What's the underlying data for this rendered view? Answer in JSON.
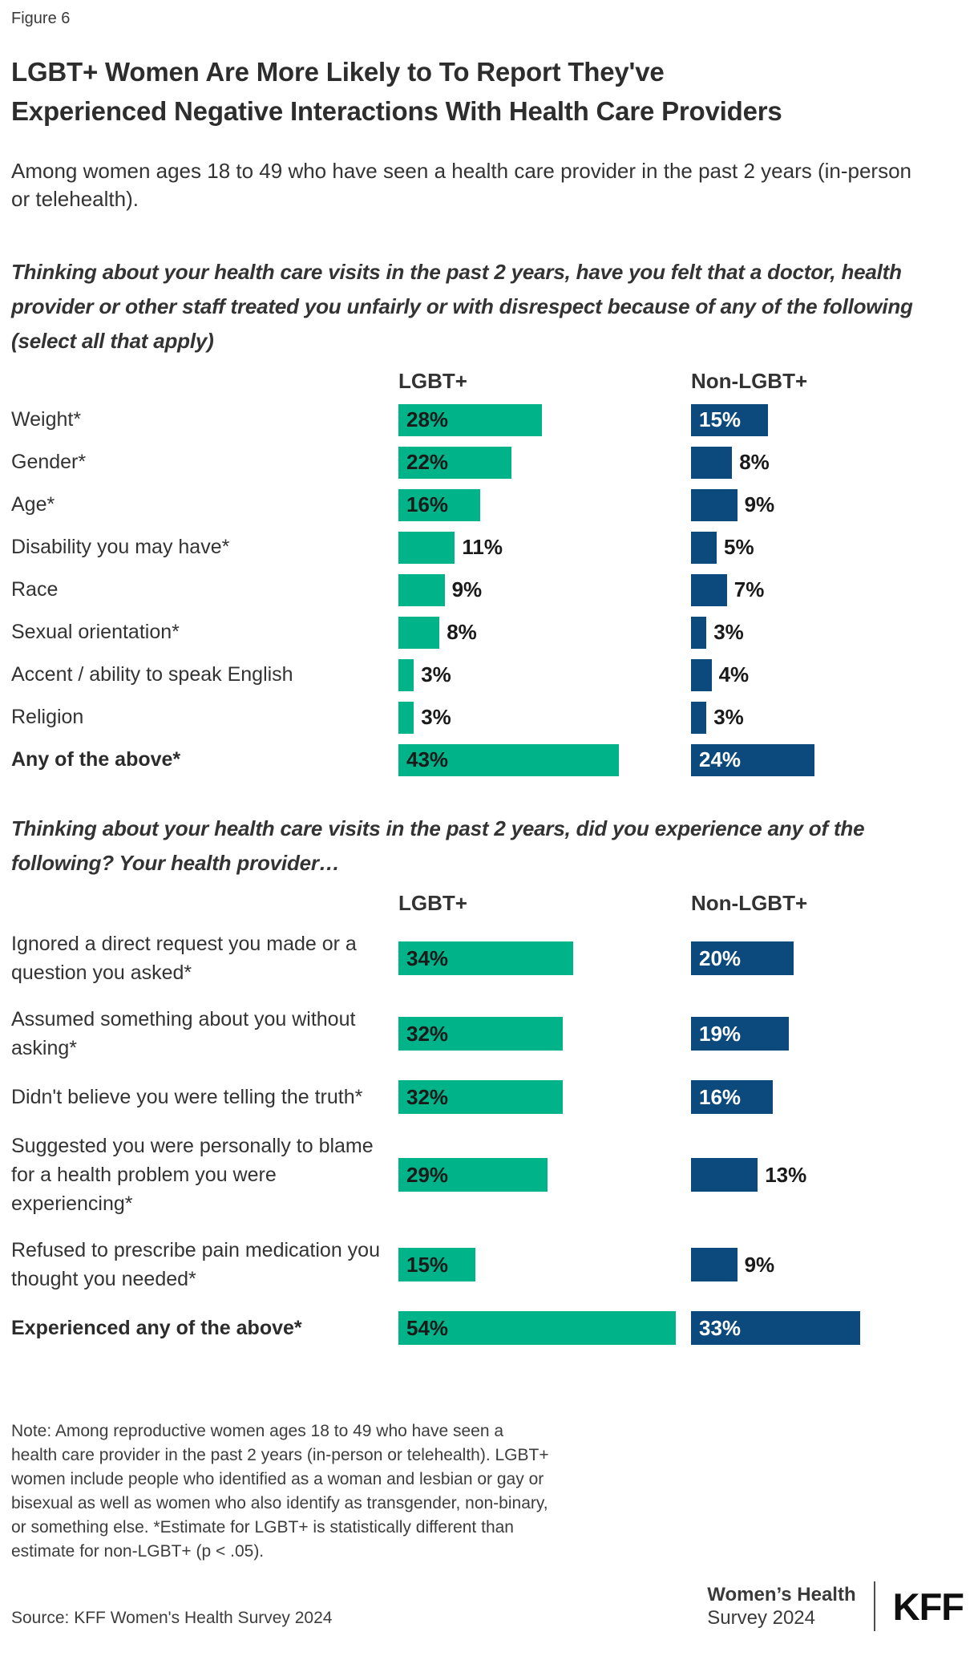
{
  "figure_label": "Figure 6",
  "title_lines": [
    "LGBT+ Women Are More Likely to To Report They've",
    "Experienced Negative Interactions With Health Care Providers"
  ],
  "subtitle": "Among women ages 18 to 49 who have seen a health care provider in the past 2 years (in-person or telehealth).",
  "colors": {
    "lgbt_green": "#00B389",
    "non_lgbt_navy": "#0C4A7E"
  },
  "chart_data": [
    {
      "type": "bar",
      "orientation": "horizontal",
      "question": "Thinking about your health care visits in the past 2 years, have you felt that a doctor, health provider or other staff treated you unfairly or with disrespect because of any of the following (select all that apply)",
      "unit": "%",
      "xlim": [
        0,
        57
      ],
      "grid": false,
      "legend_position": "column-headers",
      "categories": [
        "Weight*",
        "Gender*",
        "Age*",
        "Disability you may have*",
        "Race",
        "Sexual orientation*",
        "Accent / ability to speak English",
        "Religion",
        "Any of the above*"
      ],
      "summary_row_index": 8,
      "series": [
        {
          "name": "LGBT+",
          "color": "#00B389",
          "values": [
            28,
            22,
            16,
            11,
            9,
            8,
            3,
            3,
            43
          ],
          "label_inside": [
            true,
            true,
            true,
            false,
            false,
            false,
            false,
            false,
            true
          ]
        },
        {
          "name": "Non-LGBT+",
          "color": "#0C4A7E",
          "values": [
            15,
            8,
            9,
            5,
            7,
            3,
            4,
            3,
            24
          ],
          "label_inside": [
            true,
            false,
            false,
            false,
            false,
            false,
            false,
            false,
            true
          ]
        }
      ]
    },
    {
      "type": "bar",
      "orientation": "horizontal",
      "question": "Thinking about your health care visits in the past 2 years, did you experience any of the following? Your health provider…",
      "unit": "%",
      "xlim": [
        0,
        57
      ],
      "grid": false,
      "legend_position": "column-headers",
      "categories": [
        "Ignored a direct request you made or a question you asked*",
        "Assumed something about you without asking*",
        "Didn't believe you were telling the truth*",
        "Suggested you were personally to blame for a health problem you were experiencing*",
        "Refused to prescribe pain medication you thought you needed*",
        "Experienced any of the above*"
      ],
      "summary_row_index": 5,
      "series": [
        {
          "name": "LGBT+",
          "color": "#00B389",
          "values": [
            34,
            32,
            32,
            29,
            15,
            54
          ],
          "label_inside": [
            true,
            true,
            true,
            true,
            true,
            true
          ]
        },
        {
          "name": "Non-LGBT+",
          "color": "#0C4A7E",
          "values": [
            20,
            19,
            16,
            13,
            9,
            33
          ],
          "label_inside": [
            true,
            true,
            true,
            false,
            false,
            true
          ]
        }
      ]
    }
  ],
  "footer": {
    "note": "Note: Among reproductive women ages 18 to 49 who have seen a health care provider in the past 2 years (in-person or telehealth). LGBT+ women include people who identified as a woman and lesbian or gay or bisexual as well as women who also identify as transgender, non-binary, or something else. *Estimate for LGBT+ is statistically different than estimate for non-LGBT+ (p < .05).",
    "source": "Source: KFF Women's Health Survey 2024",
    "program_line1": "Women’s Health",
    "program_line2": "Survey 2024",
    "logo": "KFF"
  }
}
